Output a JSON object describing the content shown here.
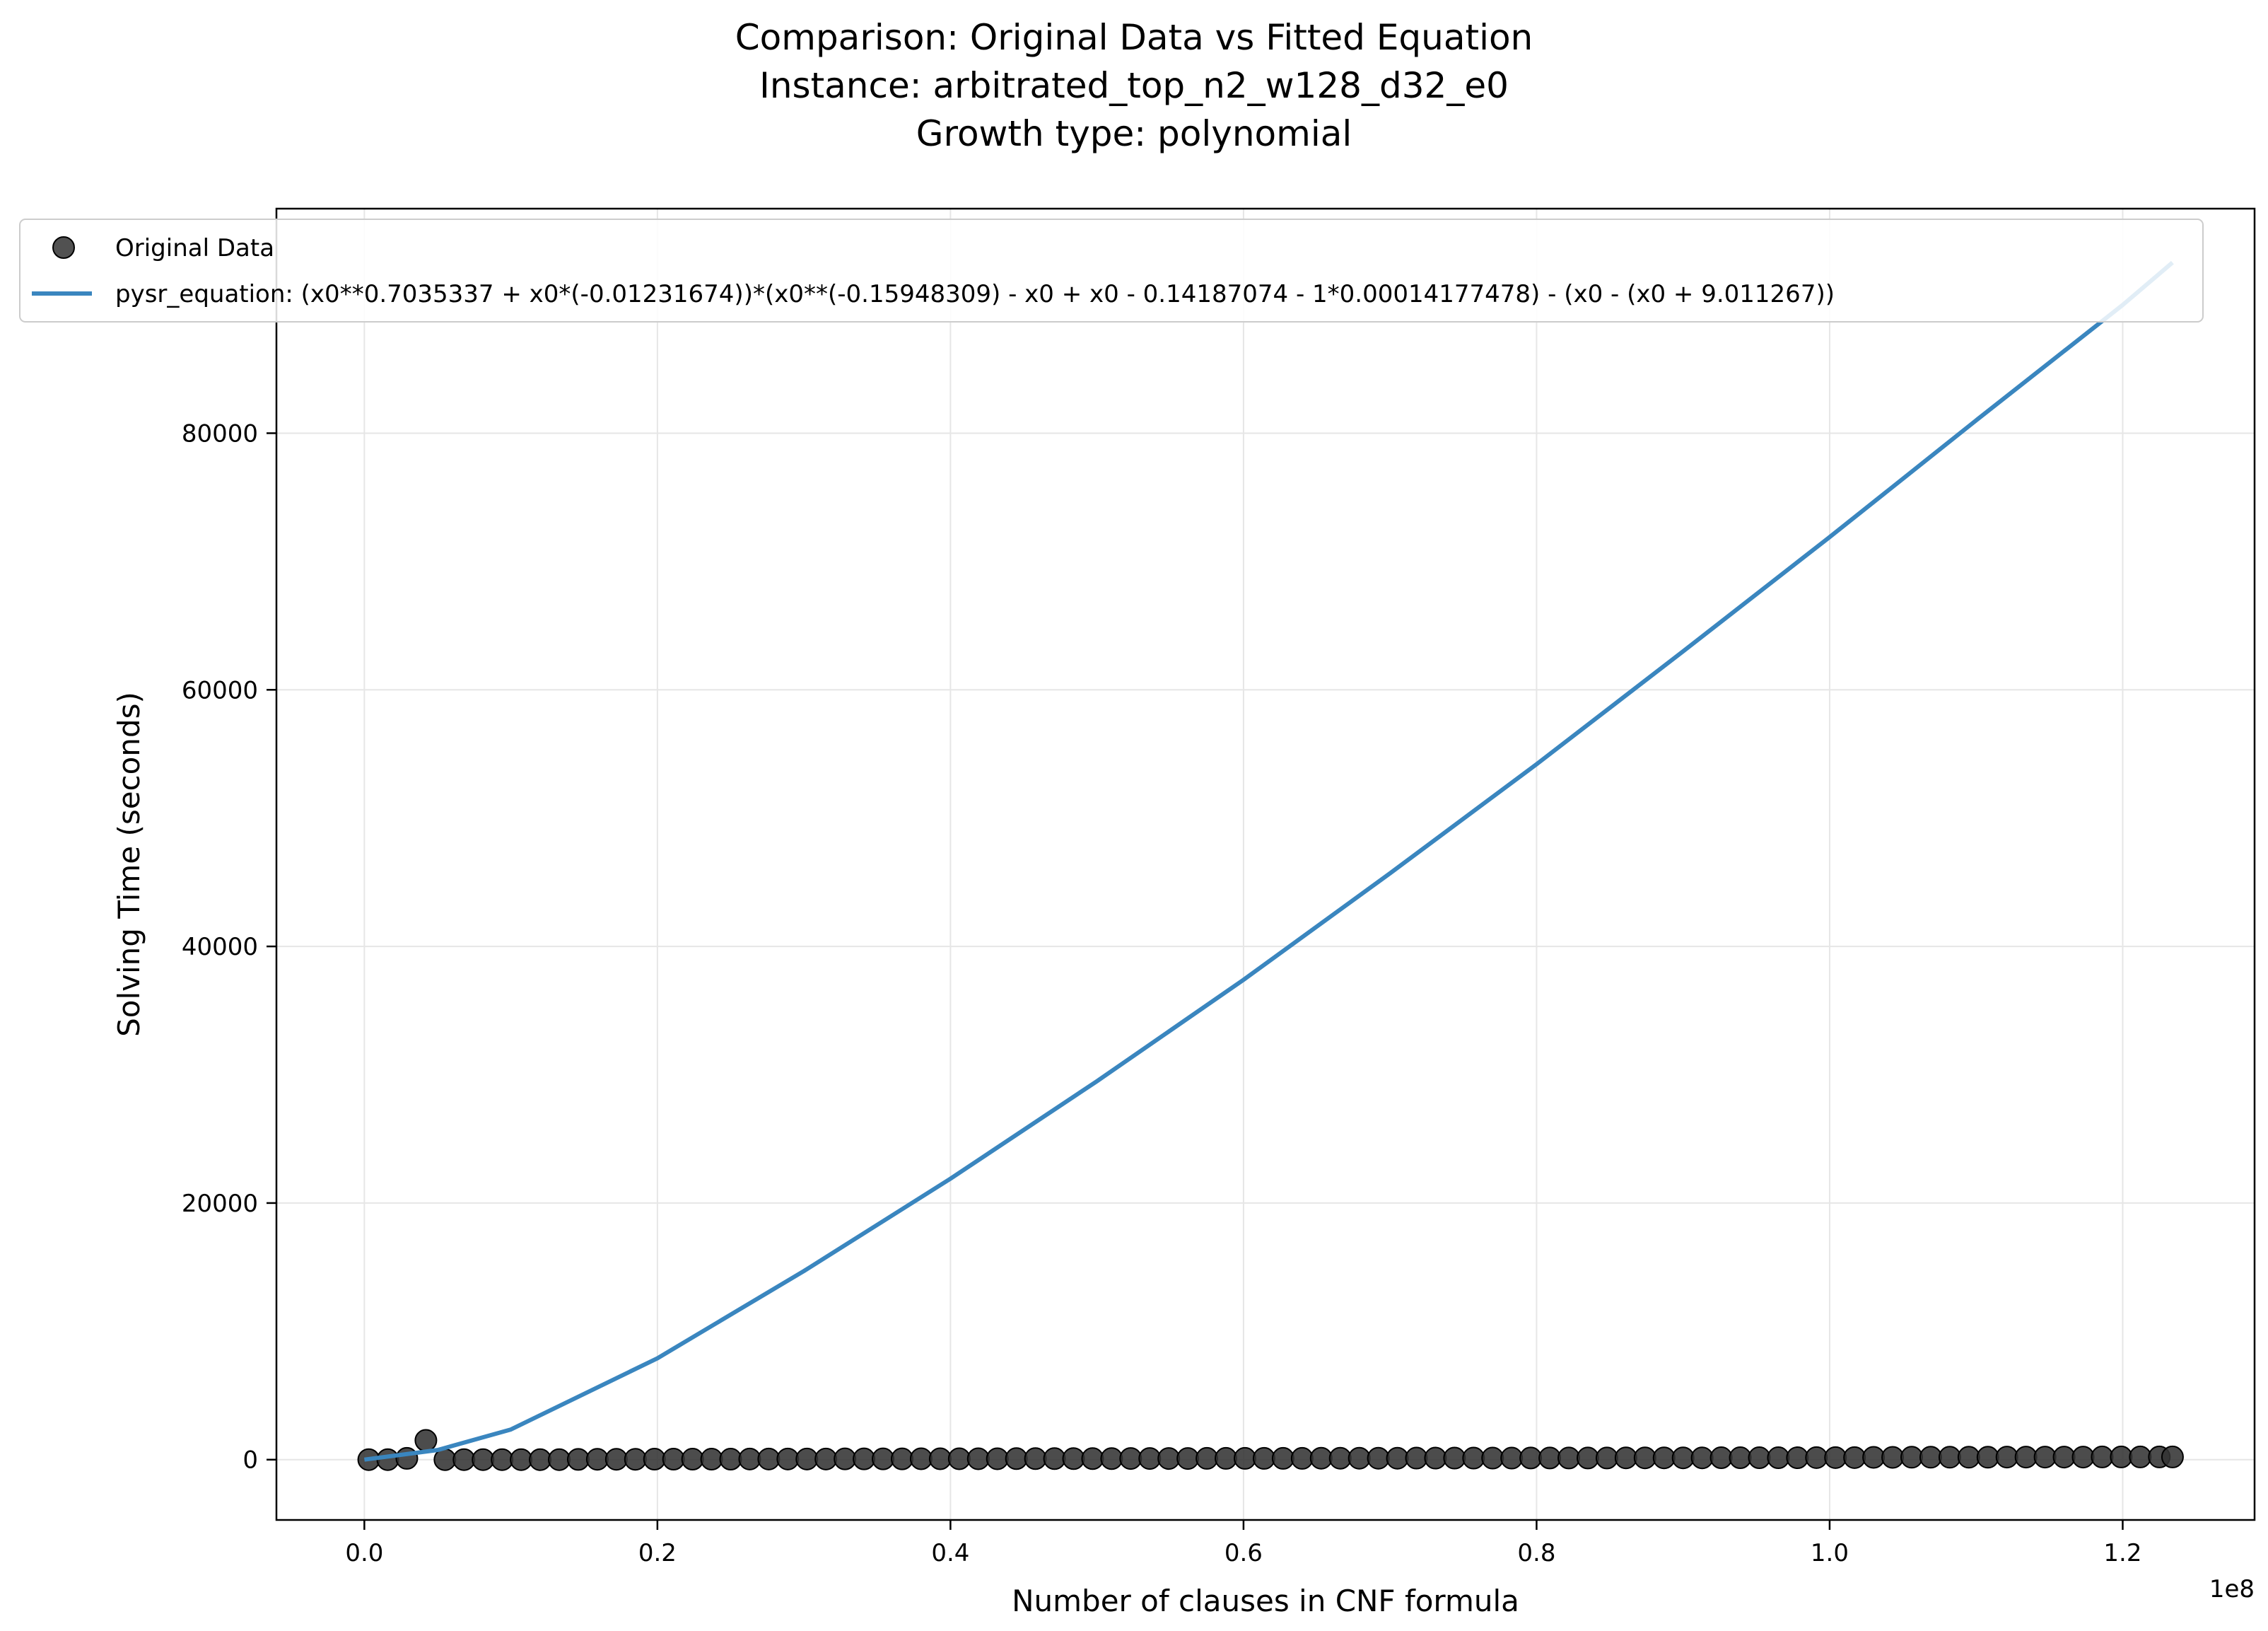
{
  "chart_data": {
    "type": "scatter",
    "title_lines": [
      "Comparison: Original Data vs Fitted Equation",
      "Instance: arbitrated_top_n2_w128_d32_e0",
      "Growth type: polynomial"
    ],
    "xlabel": "Number of clauses in CNF formula",
    "ylabel": "Solving Time (seconds)",
    "x_offset_label": "1e8",
    "x_scale_factor": 100000000,
    "xlim": [
      -6000000,
      129000000
    ],
    "ylim": [
      -4700000,
      97500
    ],
    "ylim_real": [
      -4700,
      97500
    ],
    "x_ticks": [
      0,
      20000000,
      40000000,
      60000000,
      80000000,
      100000000,
      120000000
    ],
    "x_tick_labels": [
      "0.0",
      "0.2",
      "0.4",
      "0.6",
      "0.8",
      "1.0",
      "1.2"
    ],
    "y_ticks": [
      0,
      20000,
      40000,
      60000,
      80000
    ],
    "y_tick_labels": [
      "0",
      "20000",
      "40000",
      "60000",
      "80000"
    ],
    "grid": true,
    "legend_position": "top-left",
    "colors": {
      "data": "#333333",
      "fit": "#3a86bf",
      "grid": "#e6e6e6"
    },
    "series": [
      {
        "name": "Original Data",
        "kind": "scatter",
        "points": [
          [
            300000,
            0
          ],
          [
            1600000,
            0
          ],
          [
            2900000,
            100
          ],
          [
            4200000,
            1500
          ],
          [
            5500000,
            0
          ],
          [
            6800000,
            0
          ],
          [
            8100000,
            0
          ],
          [
            9400000,
            0
          ],
          [
            10700000,
            0
          ],
          [
            12000000,
            0
          ],
          [
            13300000,
            0
          ],
          [
            14600000,
            20
          ],
          [
            15900000,
            30
          ],
          [
            17200000,
            30
          ],
          [
            18500000,
            30
          ],
          [
            19800000,
            40
          ],
          [
            21100000,
            40
          ],
          [
            22400000,
            40
          ],
          [
            23700000,
            40
          ],
          [
            25000000,
            40
          ],
          [
            26300000,
            50
          ],
          [
            27600000,
            50
          ],
          [
            28900000,
            50
          ],
          [
            30200000,
            50
          ],
          [
            31500000,
            50
          ],
          [
            32800000,
            60
          ],
          [
            34100000,
            60
          ],
          [
            35400000,
            60
          ],
          [
            36700000,
            60
          ],
          [
            38000000,
            70
          ],
          [
            39300000,
            70
          ],
          [
            40600000,
            70
          ],
          [
            41900000,
            70
          ],
          [
            43200000,
            70
          ],
          [
            44500000,
            80
          ],
          [
            45800000,
            80
          ],
          [
            47100000,
            80
          ],
          [
            48400000,
            80
          ],
          [
            49700000,
            80
          ],
          [
            51000000,
            80
          ],
          [
            52300000,
            90
          ],
          [
            53600000,
            90
          ],
          [
            54900000,
            90
          ],
          [
            56200000,
            90
          ],
          [
            57500000,
            100
          ],
          [
            58800000,
            100
          ],
          [
            60100000,
            100
          ],
          [
            61400000,
            100
          ],
          [
            62700000,
            100
          ],
          [
            64000000,
            100
          ],
          [
            65300000,
            110
          ],
          [
            66600000,
            110
          ],
          [
            67900000,
            110
          ],
          [
            69200000,
            110
          ],
          [
            70500000,
            110
          ],
          [
            71800000,
            120
          ],
          [
            73100000,
            120
          ],
          [
            74400000,
            120
          ],
          [
            75700000,
            120
          ],
          [
            77000000,
            120
          ],
          [
            78300000,
            120
          ],
          [
            79600000,
            130
          ],
          [
            80900000,
            130
          ],
          [
            82200000,
            130
          ],
          [
            83500000,
            130
          ],
          [
            84800000,
            130
          ],
          [
            86100000,
            140
          ],
          [
            87400000,
            140
          ],
          [
            88700000,
            140
          ],
          [
            90000000,
            140
          ],
          [
            91300000,
            140
          ],
          [
            92600000,
            150
          ],
          [
            93900000,
            150
          ],
          [
            95200000,
            150
          ],
          [
            96500000,
            150
          ],
          [
            97800000,
            150
          ],
          [
            99100000,
            160
          ],
          [
            100400000,
            160
          ],
          [
            101700000,
            160
          ],
          [
            103000000,
            180
          ],
          [
            104300000,
            180
          ],
          [
            105600000,
            190
          ],
          [
            106900000,
            190
          ],
          [
            108200000,
            190
          ],
          [
            109500000,
            190
          ],
          [
            110800000,
            190
          ],
          [
            112100000,
            200
          ],
          [
            113400000,
            200
          ],
          [
            114700000,
            200
          ],
          [
            116000000,
            200
          ],
          [
            117300000,
            200
          ],
          [
            118600000,
            210
          ],
          [
            119900000,
            210
          ],
          [
            121200000,
            210
          ],
          [
            122500000,
            210
          ],
          [
            123400000,
            210
          ]
        ]
      },
      {
        "name": "pysr_equation: (x0**0.7035337 + x0*(-0.01231674))*(x0**(-0.15948309) - x0 + x0 - 0.14187074 - 1*0.00014177478) - (x0 - (x0 + 9.011267))",
        "kind": "line",
        "points": [
          [
            0,
            0
          ],
          [
            5000000,
            750
          ],
          [
            10000000,
            2350
          ],
          [
            20000000,
            7900
          ],
          [
            30000000,
            14700
          ],
          [
            40000000,
            21900
          ],
          [
            50000000,
            29500
          ],
          [
            60000000,
            37400
          ],
          [
            70000000,
            45700
          ],
          [
            80000000,
            54200
          ],
          [
            90000000,
            63000
          ],
          [
            100000000,
            71900
          ],
          [
            110000000,
            81000
          ],
          [
            120000000,
            90000
          ],
          [
            123400000,
            93300
          ]
        ]
      }
    ]
  }
}
